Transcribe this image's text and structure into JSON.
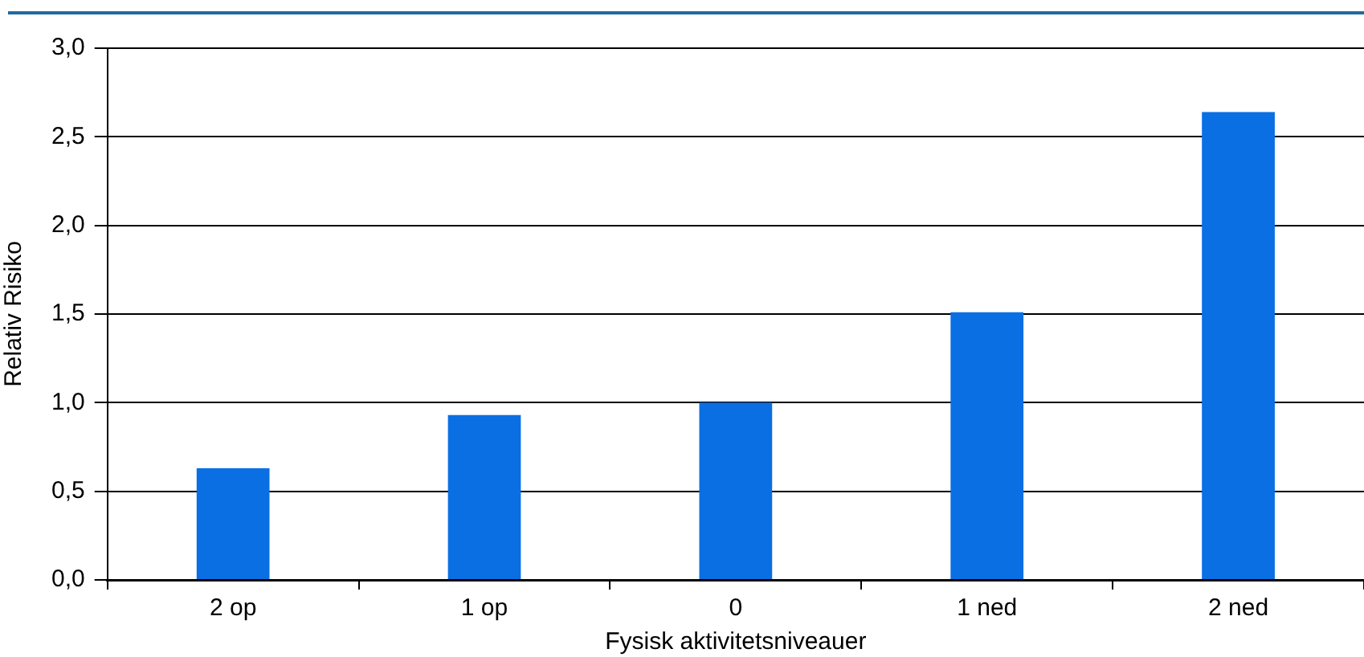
{
  "chart_data": {
    "type": "bar",
    "xlabel": "Fysisk aktivitetsniveauer",
    "ylabel": "Relativ Risiko",
    "categories": [
      "2 op",
      "1 op",
      "0",
      "1 ned",
      "2 ned"
    ],
    "values": [
      0.63,
      0.93,
      1.0,
      1.51,
      2.64
    ],
    "color": "#0a6fe3",
    "ylim": [
      0,
      3
    ],
    "yticks": [
      {
        "value": 0,
        "label": "0,0"
      },
      {
        "value": 0.5,
        "label": "0,5"
      },
      {
        "value": 1,
        "label": "1,0"
      },
      {
        "value": 1.5,
        "label": "1,5"
      },
      {
        "value": 2,
        "label": "2,0"
      },
      {
        "value": 2.5,
        "label": "2,5"
      },
      {
        "value": 3,
        "label": "3,0"
      }
    ],
    "grid": "y",
    "legend": false
  }
}
